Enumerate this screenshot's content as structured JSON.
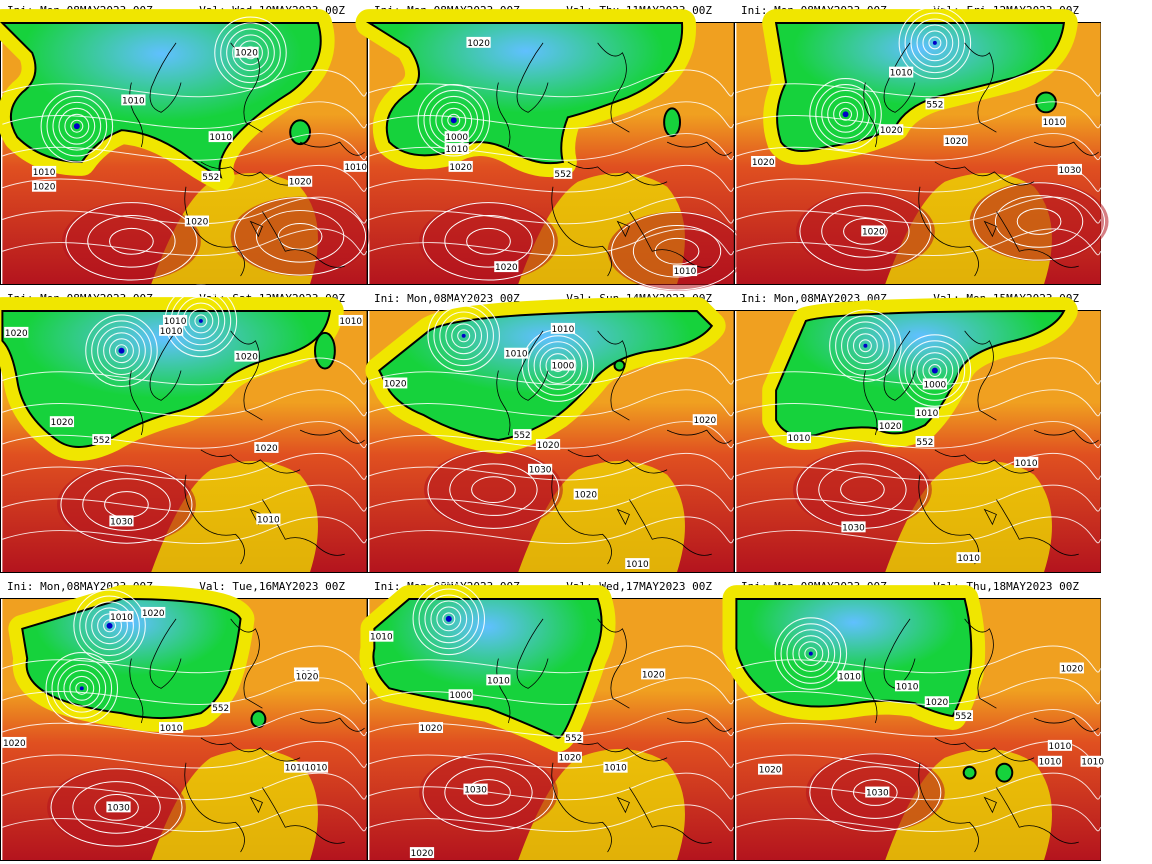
{
  "panels": [
    {
      "ini": "Ini: Mon,08MAY2023 00Z",
      "valid": "Val: Wed,10MAY2023 00Z",
      "labels": [
        "1020",
        "1010",
        "1010",
        "1010",
        "1020",
        "552",
        "1020",
        "1020",
        "1010"
      ]
    },
    {
      "ini": "Ini: Mon,08MAY2023 00Z",
      "valid": "Val: Thu,11MAY2023 00Z",
      "labels": [
        "1020",
        "1000",
        "1010",
        "1020",
        "552",
        "1020",
        "1010"
      ]
    },
    {
      "ini": "Ini: Mon,08MAY2023 00Z",
      "valid": "Val: Fri,12MAY2023 00Z",
      "labels": [
        "1010",
        "552",
        "1020",
        "1020",
        "1020",
        "1010",
        "1030",
        "1020"
      ]
    },
    {
      "ini": "Ini: Mon,08MAY2023 00Z",
      "valid": "Val: Sat,13MAY2023 00Z",
      "labels": [
        "1020",
        "1010",
        "1010",
        "1010",
        "1020",
        "1020",
        "552",
        "1020",
        "1030",
        "1010"
      ]
    },
    {
      "ini": "Ini: Mon,08MAY2023 00Z",
      "valid": "Val: Sun,14MAY2023 00Z",
      "labels": [
        "1010",
        "1010",
        "1000",
        "1020",
        "552",
        "1020",
        "1030",
        "1020",
        "1020",
        "1010"
      ]
    },
    {
      "ini": "Ini: Mon,08MAY2023 00Z",
      "valid": "Val: Mon,15MAY2023 00Z",
      "labels": [
        "1000",
        "1010",
        "1020",
        "1010",
        "552",
        "1010",
        "1030",
        "1010"
      ]
    },
    {
      "ini": "Ini: Mon,08MAY2023 00Z",
      "valid": "Val: Tue,16MAY2023 00Z",
      "labels": [
        "1010",
        "1020",
        "1020",
        "1020",
        "552",
        "1010",
        "1020",
        "1010",
        "1010",
        "1030"
      ]
    },
    {
      "ini": "Ini: Mon,08MAY2023 00Z",
      "valid": "Val: Wed,17MAY2023 00Z",
      "labels": [
        "1010",
        "1010",
        "1000",
        "1020",
        "1020",
        "552",
        "1020",
        "1010",
        "1030",
        "1020"
      ]
    },
    {
      "ini": "Ini: Mon,08MAY2023 00Z",
      "valid": "Val: Thu,18MAY2023 00Z",
      "labels": [
        "1010",
        "1010",
        "1020",
        "1020",
        "552",
        "1010",
        "1020",
        "1030",
        "1010",
        "1010"
      ]
    }
  ],
  "colors": {
    "low_center": "#0000c8",
    "cool": "#60c0ff",
    "trough": "#16d23c",
    "mid": "#f0e600",
    "warm": "#f0a020",
    "hot": "#e05020",
    "high": "#b4141e",
    "isobar": "#ffffff",
    "contour_552": "#000000",
    "coastline": "#000000"
  }
}
